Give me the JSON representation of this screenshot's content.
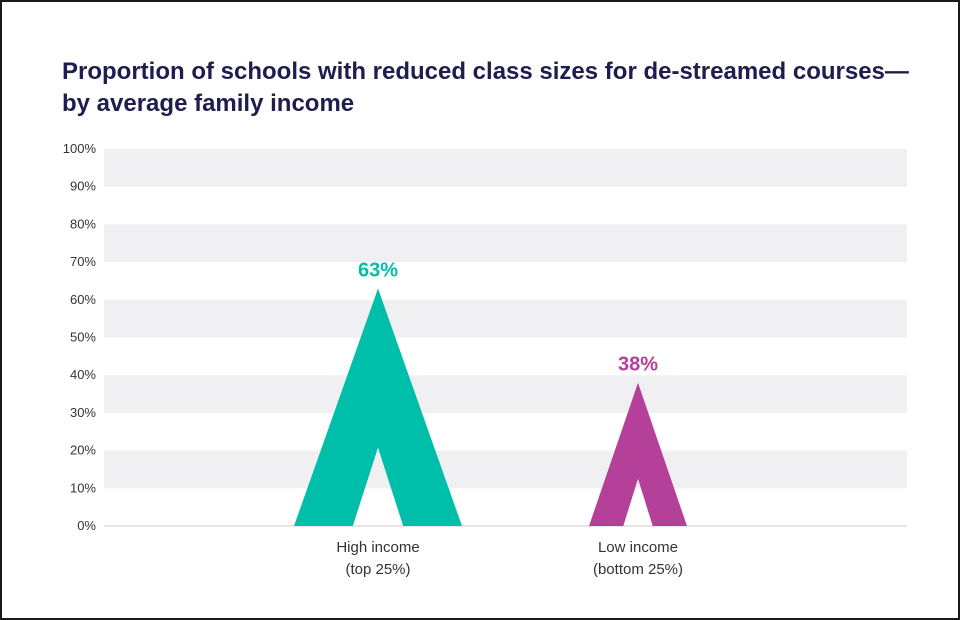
{
  "chart_data": {
    "type": "bar",
    "title": "Proportion of schools with reduced class sizes for de-streamed courses—by average family income",
    "categories": [
      {
        "line1": "High income",
        "line2": "(top 25%)"
      },
      {
        "line1": "Low income",
        "line2": "(bottom 25%)"
      }
    ],
    "values": [
      63,
      38
    ],
    "data_labels": [
      "63%",
      "38%"
    ],
    "colors": [
      "#00bfaa",
      "#b5409a"
    ],
    "ylim": [
      0,
      100
    ],
    "yticks": [
      "0%",
      "10%",
      "20%",
      "30%",
      "40%",
      "50%",
      "60%",
      "70%",
      "80%",
      "90%",
      "100%"
    ],
    "grid": "alternating horizontal bands",
    "legend": "none"
  }
}
